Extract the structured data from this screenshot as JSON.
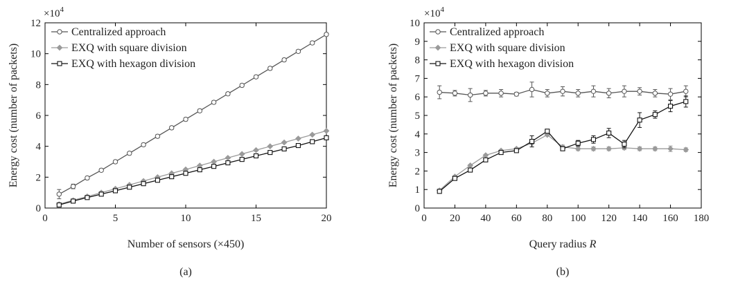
{
  "chart_data": [
    {
      "type": "line",
      "id": "a",
      "caption": "(a)",
      "xlabel": "Number of sensors (×450)",
      "ylabel": "Energy cost (number of packets)",
      "y_multiplier": "×10",
      "y_multiplier_exp": "4",
      "xlim": [
        0,
        20
      ],
      "ylim": [
        0,
        12
      ],
      "xticks": [
        0,
        5,
        10,
        15,
        20
      ],
      "yticks": [
        0,
        2,
        4,
        6,
        8,
        10,
        12
      ],
      "legend_position": "top-left",
      "grid": false,
      "series": [
        {
          "name": "Centralized approach",
          "marker": "circle",
          "color": "#555555",
          "x": [
            1,
            2,
            3,
            4,
            5,
            6,
            7,
            8,
            9,
            10,
            11,
            12,
            13,
            14,
            15,
            16,
            17,
            18,
            19,
            20
          ],
          "y": [
            0.9,
            1.4,
            1.95,
            2.45,
            3.0,
            3.55,
            4.1,
            4.65,
            5.2,
            5.75,
            6.3,
            6.85,
            7.4,
            7.95,
            8.5,
            9.05,
            9.6,
            10.15,
            10.7,
            11.25
          ],
          "err": [
            0.3,
            0.15,
            0.1,
            0.1,
            0.1,
            0.1,
            0.1,
            0.1,
            0.1,
            0.1,
            0.1,
            0.1,
            0.1,
            0.1,
            0.1,
            0.1,
            0.1,
            0.1,
            0.1,
            0.1
          ]
        },
        {
          "name": "EXQ with square division",
          "marker": "diamond",
          "color": "#9a9a9a",
          "x": [
            1,
            2,
            3,
            4,
            5,
            6,
            7,
            8,
            9,
            10,
            11,
            12,
            13,
            14,
            15,
            16,
            17,
            18,
            19,
            20
          ],
          "y": [
            0.25,
            0.5,
            0.75,
            1.0,
            1.25,
            1.5,
            1.75,
            2.0,
            2.25,
            2.5,
            2.75,
            3.0,
            3.25,
            3.5,
            3.75,
            4.0,
            4.25,
            4.5,
            4.75,
            5.0
          ],
          "err": [
            0.05,
            0.05,
            0.05,
            0.05,
            0.05,
            0.05,
            0.05,
            0.05,
            0.05,
            0.05,
            0.05,
            0.05,
            0.05,
            0.05,
            0.05,
            0.05,
            0.05,
            0.05,
            0.05,
            0.05
          ]
        },
        {
          "name": "EXQ with hexagon division",
          "marker": "square",
          "color": "#111111",
          "x": [
            1,
            2,
            3,
            4,
            5,
            6,
            7,
            8,
            9,
            10,
            11,
            12,
            13,
            14,
            15,
            16,
            17,
            18,
            19,
            20
          ],
          "y": [
            0.2,
            0.45,
            0.68,
            0.9,
            1.12,
            1.35,
            1.58,
            1.8,
            2.03,
            2.25,
            2.48,
            2.7,
            2.93,
            3.15,
            3.38,
            3.6,
            3.83,
            4.05,
            4.3,
            4.55
          ],
          "err": [
            0.05,
            0.05,
            0.05,
            0.05,
            0.05,
            0.05,
            0.05,
            0.05,
            0.05,
            0.05,
            0.05,
            0.05,
            0.05,
            0.05,
            0.05,
            0.05,
            0.05,
            0.05,
            0.05,
            0.05
          ]
        }
      ]
    },
    {
      "type": "line",
      "id": "b",
      "caption": "(b)",
      "xlabel": "Query radius ",
      "xlabel_italic": "R",
      "ylabel": "Energy cost (number of packets)",
      "y_multiplier": "×10",
      "y_multiplier_exp": "4",
      "xlim": [
        0,
        180
      ],
      "ylim": [
        0,
        10
      ],
      "xticks": [
        0,
        20,
        40,
        60,
        80,
        100,
        120,
        140,
        160,
        180
      ],
      "yticks": [
        0,
        1,
        2,
        3,
        4,
        5,
        6,
        7,
        8,
        9,
        10
      ],
      "legend_position": "top-left",
      "grid": false,
      "series": [
        {
          "name": "Centralized approach",
          "marker": "circle",
          "color": "#555555",
          "x": [
            10,
            20,
            30,
            40,
            50,
            60,
            70,
            80,
            90,
            100,
            110,
            120,
            130,
            140,
            150,
            160,
            170
          ],
          "y": [
            6.25,
            6.2,
            6.1,
            6.2,
            6.2,
            6.15,
            6.4,
            6.2,
            6.3,
            6.2,
            6.3,
            6.2,
            6.3,
            6.3,
            6.2,
            6.15,
            6.3
          ],
          "err": [
            0.35,
            0.15,
            0.35,
            0.15,
            0.2,
            0.1,
            0.4,
            0.2,
            0.25,
            0.2,
            0.3,
            0.25,
            0.3,
            0.2,
            0.2,
            0.3,
            0.3
          ]
        },
        {
          "name": "EXQ with square division",
          "marker": "diamond",
          "color": "#9a9a9a",
          "x": [
            10,
            20,
            30,
            40,
            50,
            60,
            70,
            80,
            90,
            100,
            110,
            120,
            130,
            140,
            150,
            160,
            170
          ],
          "y": [
            0.95,
            1.7,
            2.3,
            2.85,
            3.1,
            3.2,
            3.5,
            3.95,
            3.3,
            3.2,
            3.2,
            3.2,
            3.25,
            3.2,
            3.2,
            3.2,
            3.15
          ],
          "err": [
            0.05,
            0.05,
            0.05,
            0.05,
            0.05,
            0.05,
            0.05,
            0.05,
            0.1,
            0.1,
            0.1,
            0.1,
            0.1,
            0.1,
            0.1,
            0.15,
            0.1
          ]
        },
        {
          "name": "EXQ with hexagon division",
          "marker": "square",
          "color": "#111111",
          "x": [
            10,
            20,
            30,
            40,
            50,
            60,
            70,
            80,
            90,
            100,
            110,
            120,
            130,
            140,
            150,
            160,
            170
          ],
          "y": [
            0.9,
            1.6,
            2.05,
            2.6,
            3.0,
            3.1,
            3.6,
            4.15,
            3.2,
            3.5,
            3.7,
            4.05,
            3.45,
            4.75,
            5.05,
            5.5,
            5.75
          ],
          "err": [
            0.05,
            0.05,
            0.05,
            0.05,
            0.05,
            0.1,
            0.3,
            0.1,
            0.1,
            0.15,
            0.2,
            0.25,
            0.2,
            0.4,
            0.2,
            0.3,
            0.3
          ]
        }
      ]
    }
  ]
}
